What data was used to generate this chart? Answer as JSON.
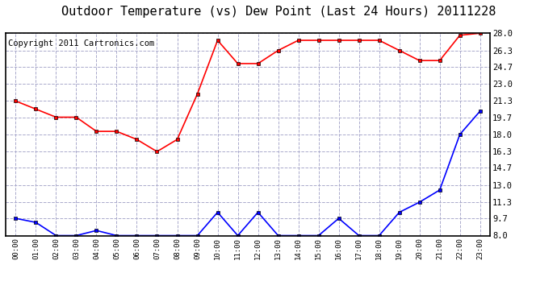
{
  "title": "Outdoor Temperature (vs) Dew Point (Last 24 Hours) 20111228",
  "copyright": "Copyright 2011 Cartronics.com",
  "x_labels": [
    "00:00",
    "01:00",
    "02:00",
    "03:00",
    "04:00",
    "05:00",
    "06:00",
    "07:00",
    "08:00",
    "09:00",
    "10:00",
    "11:00",
    "12:00",
    "13:00",
    "14:00",
    "15:00",
    "16:00",
    "17:00",
    "18:00",
    "19:00",
    "20:00",
    "21:00",
    "22:00",
    "23:00"
  ],
  "temp_data": [
    21.3,
    20.5,
    19.7,
    19.7,
    18.3,
    18.3,
    17.5,
    16.3,
    17.5,
    22.0,
    27.3,
    25.0,
    25.0,
    26.3,
    27.3,
    27.3,
    27.3,
    27.3,
    27.3,
    26.3,
    25.3,
    25.3,
    27.8,
    28.0
  ],
  "dew_data": [
    9.7,
    9.3,
    8.0,
    8.0,
    8.5,
    8.0,
    8.0,
    8.0,
    8.0,
    8.0,
    10.3,
    8.0,
    10.3,
    8.0,
    8.0,
    8.0,
    9.7,
    8.0,
    8.0,
    10.3,
    11.3,
    12.5,
    18.0,
    20.3
  ],
  "y_ticks": [
    8.0,
    9.7,
    11.3,
    13.0,
    14.7,
    16.3,
    18.0,
    19.7,
    21.3,
    23.0,
    24.7,
    26.3,
    28.0
  ],
  "ylim": [
    8.0,
    28.0
  ],
  "temp_color": "red",
  "dew_color": "blue",
  "bg_color": "#ffffff",
  "grid_color": "#aaaacc",
  "title_fontsize": 11,
  "copyright_fontsize": 7.5
}
